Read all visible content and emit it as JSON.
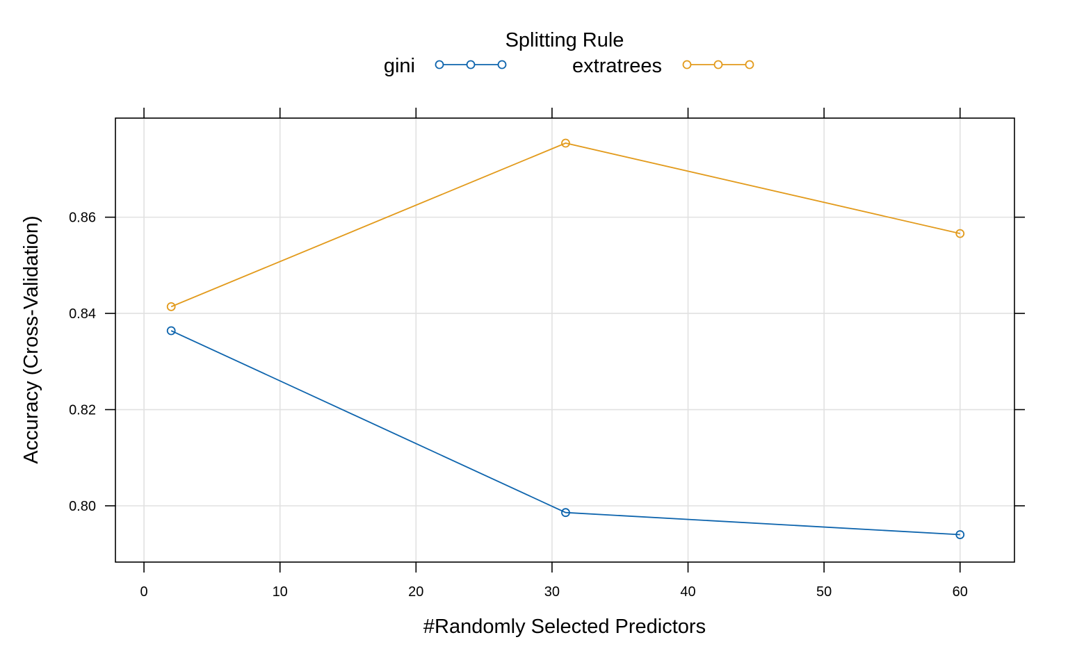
{
  "chart_data": {
    "type": "line",
    "xlabel": "#Randomly Selected Predictors",
    "ylabel": "Accuracy (Cross-Validation)",
    "legend": {
      "title": "Splitting Rule",
      "placement": "top"
    },
    "xlim": [
      -2.1,
      64.0
    ],
    "ylim": [
      0.7883,
      0.8806
    ],
    "xticks": [
      0,
      10,
      20,
      30,
      40,
      50,
      60
    ],
    "yticks": [
      0.8,
      0.82,
      0.84,
      0.86
    ],
    "xtick_labels": [
      "0",
      "10",
      "20",
      "30",
      "40",
      "50",
      "60"
    ],
    "ytick_labels": [
      "0.80",
      "0.82",
      "0.84",
      "0.86"
    ],
    "grid": true,
    "series": [
      {
        "name": "gini",
        "color": "#0d64ad",
        "x": [
          2,
          31,
          60
        ],
        "y": [
          0.8364,
          0.7986,
          0.794
        ]
      },
      {
        "name": "extratrees",
        "color": "#e29a1b",
        "x": [
          2,
          31,
          60
        ],
        "y": [
          0.8414,
          0.8754,
          0.8566
        ]
      }
    ]
  }
}
